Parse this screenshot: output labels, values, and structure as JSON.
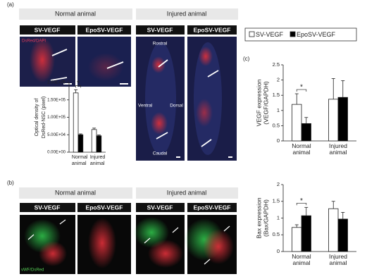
{
  "labels": {
    "panel_a": "(a)",
    "panel_b": "(b)",
    "panel_c": "(c)",
    "a_normal": "Normal animal",
    "a_injured": "Injured animal",
    "a_sv_1": "SV-VEGF",
    "a_epo_1": "EpoSV-VEGF",
    "a_sv_2": "SV-VEGF",
    "a_epo_2": "EpoSV-VEGF",
    "stain_a": "DsRed/DAPI",
    "rostral": "Rostral",
    "ventral": "Ventral",
    "dorsal": "Dorsal",
    "caudal": "Caudal",
    "b_normal": "Normal animal",
    "b_injured": "Injured animal",
    "b_sv_1": "SV-VEGF",
    "b_epo_1": "EpoSV-VEGF",
    "b_sv_2": "SV-VEGF",
    "b_epo_2": "EpoSV-VEGF",
    "stain_b": "vWF/DsRed"
  },
  "chart_data": [
    {
      "type": "bar",
      "ylabel": [
        "Optical density of",
        "DsRed-NSC (pixel)"
      ],
      "categories": [
        "Normal animal",
        "Injured animal"
      ],
      "series": [
        {
          "color": "#ffffff",
          "values": [
            170000,
            65000
          ],
          "errors": [
            9000,
            4000
          ]
        },
        {
          "color": "#000000",
          "values": [
            50000,
            47000
          ],
          "errors": [
            2500,
            2500
          ]
        }
      ],
      "group_by": "category",
      "ylim": [
        0,
        200000
      ],
      "yticks": [
        {
          "value": 0,
          "label": "0.00E+00"
        },
        {
          "value": 50000,
          "label": "5.00E+04"
        },
        {
          "value": 100000,
          "label": "1.00E+05"
        },
        {
          "value": 150000,
          "label": "1.50E+05"
        },
        {
          "value": 200000,
          "label": "2.00E+05"
        }
      ],
      "annotation": "*"
    },
    {
      "type": "bar",
      "ylabel": [
        "VEGF expression",
        "(VEGF/GAPDH)"
      ],
      "categories": [
        "Normal animal",
        "Injured animal"
      ],
      "series": [
        {
          "name": "SV-VEGF",
          "color": "#ffffff",
          "values": [
            1.2,
            1.37
          ],
          "errors": [
            0.35,
            0.68
          ]
        },
        {
          "name": "EpoSV-VEGF",
          "color": "#000000",
          "values": [
            0.57,
            1.43
          ],
          "errors": [
            0.2,
            0.55
          ]
        }
      ],
      "ylim": [
        0,
        2.5
      ],
      "yticks": [
        0,
        0.5,
        1,
        1.5,
        2,
        2.5
      ],
      "annotation": "*"
    },
    {
      "type": "bar",
      "ylabel": [
        "Bax expression",
        "(Bax/GAPDH)"
      ],
      "categories": [
        "Normal animal",
        "Injured animal"
      ],
      "series": [
        {
          "color": "#ffffff",
          "values": [
            0.72,
            1.28
          ],
          "errors": [
            0.08,
            0.22
          ]
        },
        {
          "color": "#000000",
          "values": [
            1.07,
            0.97
          ],
          "errors": [
            0.25,
            0.2
          ]
        }
      ],
      "ylim": [
        0,
        2
      ],
      "yticks": [
        0,
        0.5,
        1,
        1.5,
        2
      ],
      "annotation": "*"
    }
  ]
}
